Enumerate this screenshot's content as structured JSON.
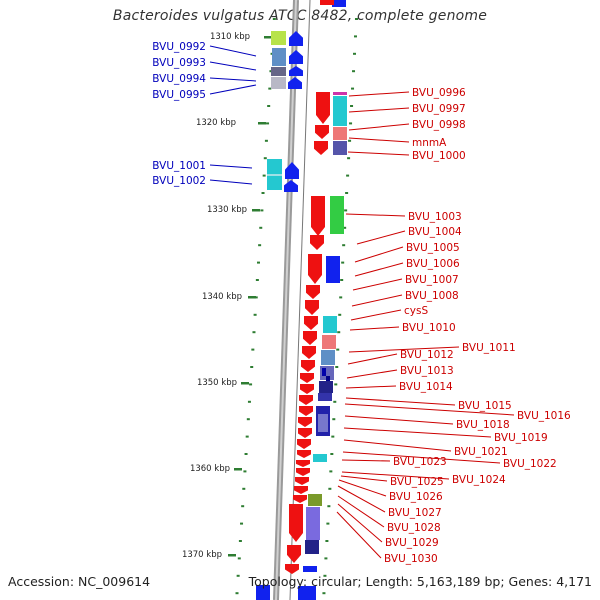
{
  "title": "Bacteroides vulgatus ATCC 8482, complete genome",
  "footer": {
    "accession": "Accession: NC_009614",
    "topology": "Topology: circular; Length: 5,163,189 bp; Genes: 4,171"
  },
  "scale": {
    "unit": "kbp",
    "ticks": [
      "1310 kbp",
      "1320 kbp",
      "1330 kbp",
      "1340 kbp",
      "1350 kbp",
      "1360 kbp",
      "1370 kbp"
    ]
  },
  "colors": {
    "forward_label": "#0000bb",
    "reverse_label": "#cc0000",
    "backbone": "#888888",
    "tick": "#2e7d32"
  },
  "genes_forward": [
    "BVU_0992",
    "BVU_0993",
    "BVU_0994",
    "BVU_0995",
    "BVU_1001",
    "BVU_1002"
  ],
  "genes_reverse": [
    "BVU_0996",
    "BVU_0997",
    "BVU_0998",
    "mnmA",
    "BVU_1000",
    "BVU_1003",
    "BVU_1004",
    "BVU_1005",
    "BVU_1006",
    "BVU_1007",
    "BVU_1008",
    "cysS",
    "BVU_1010",
    "BVU_1011",
    "BVU_1012",
    "BVU_1013",
    "BVU_1014",
    "BVU_1015",
    "BVU_1016",
    "BVU_1018",
    "BVU_1019",
    "BVU_1021",
    "BVU_1022",
    "BVU_1023",
    "BVU_1024",
    "BVU_1025",
    "BVU_1026",
    "BVU_1027",
    "BVU_1028",
    "BVU_1029",
    "BVU_1030"
  ]
}
